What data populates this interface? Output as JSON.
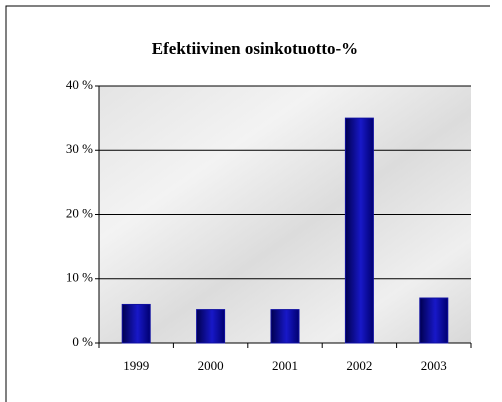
{
  "chart_data": {
    "type": "bar",
    "title": "Efektiivinen osinkotuotto-%",
    "categories": [
      "1999",
      "2000",
      "2001",
      "2002",
      "2003"
    ],
    "values": [
      6,
      5.2,
      5.2,
      35,
      7
    ],
    "color": "#1010a0",
    "ylim": [
      0,
      40
    ],
    "yticks": [
      {
        "value": 0,
        "label": "0 %"
      },
      {
        "value": 10,
        "label": "10 %"
      },
      {
        "value": 20,
        "label": "20 %"
      },
      {
        "value": 30,
        "label": "30 %"
      },
      {
        "value": 40,
        "label": "40 %"
      }
    ],
    "grid": true
  }
}
